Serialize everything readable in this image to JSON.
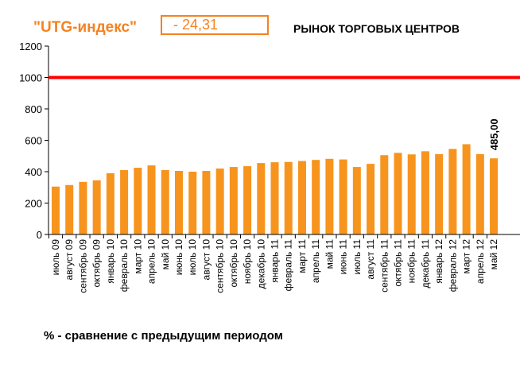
{
  "header": {
    "index_label": "\"UTG-индекс\"",
    "index_value": "- 24,31",
    "title": "РЫНОК ТОРГОВЫХ ЦЕНТРОВ"
  },
  "footnote": "% - сравнение с предыдущим периодом",
  "chart_data": {
    "type": "bar",
    "title": "РЫНОК ТОРГОВЫХ ЦЕНТРОВ",
    "xlabel": "",
    "ylabel": "",
    "ylim": [
      0,
      1200
    ],
    "yticks": [
      "0",
      "200",
      "400",
      "600",
      "800",
      "1000",
      "1200"
    ],
    "grid": false,
    "bar_color": "#f7941d",
    "reference_line": {
      "value": 1000,
      "color": "#ff0000"
    },
    "categories": [
      "июль 09",
      "август 09",
      "сентябрь 09",
      "октябрь 09",
      "январь 10",
      "февраль 10",
      "март 10",
      "апрель 10",
      "май 10",
      "июнь 10",
      "июль 10",
      "август 10",
      "сентябрь 10",
      "октябрь 10",
      "ноябрь 10",
      "декабрь 10",
      "январь 11",
      "февраль 11",
      "март 11",
      "апрель 11",
      "май 11",
      "июнь 11",
      "июль 11",
      "август 11",
      "сентябрь 11",
      "октябрь 11",
      "ноябрь 11",
      "декабрь 11",
      "январь 12",
      "февраль 12",
      "март 12",
      "апрель 12",
      "май 12"
    ],
    "values": [
      305,
      315,
      335,
      345,
      390,
      410,
      425,
      440,
      410,
      405,
      400,
      405,
      420,
      430,
      435,
      455,
      460,
      462,
      468,
      475,
      482,
      478,
      430,
      450,
      505,
      520,
      510,
      530,
      512,
      545,
      575,
      512,
      485
    ],
    "data_labels": [
      {
        "index": 32,
        "text": "485,00"
      }
    ]
  }
}
